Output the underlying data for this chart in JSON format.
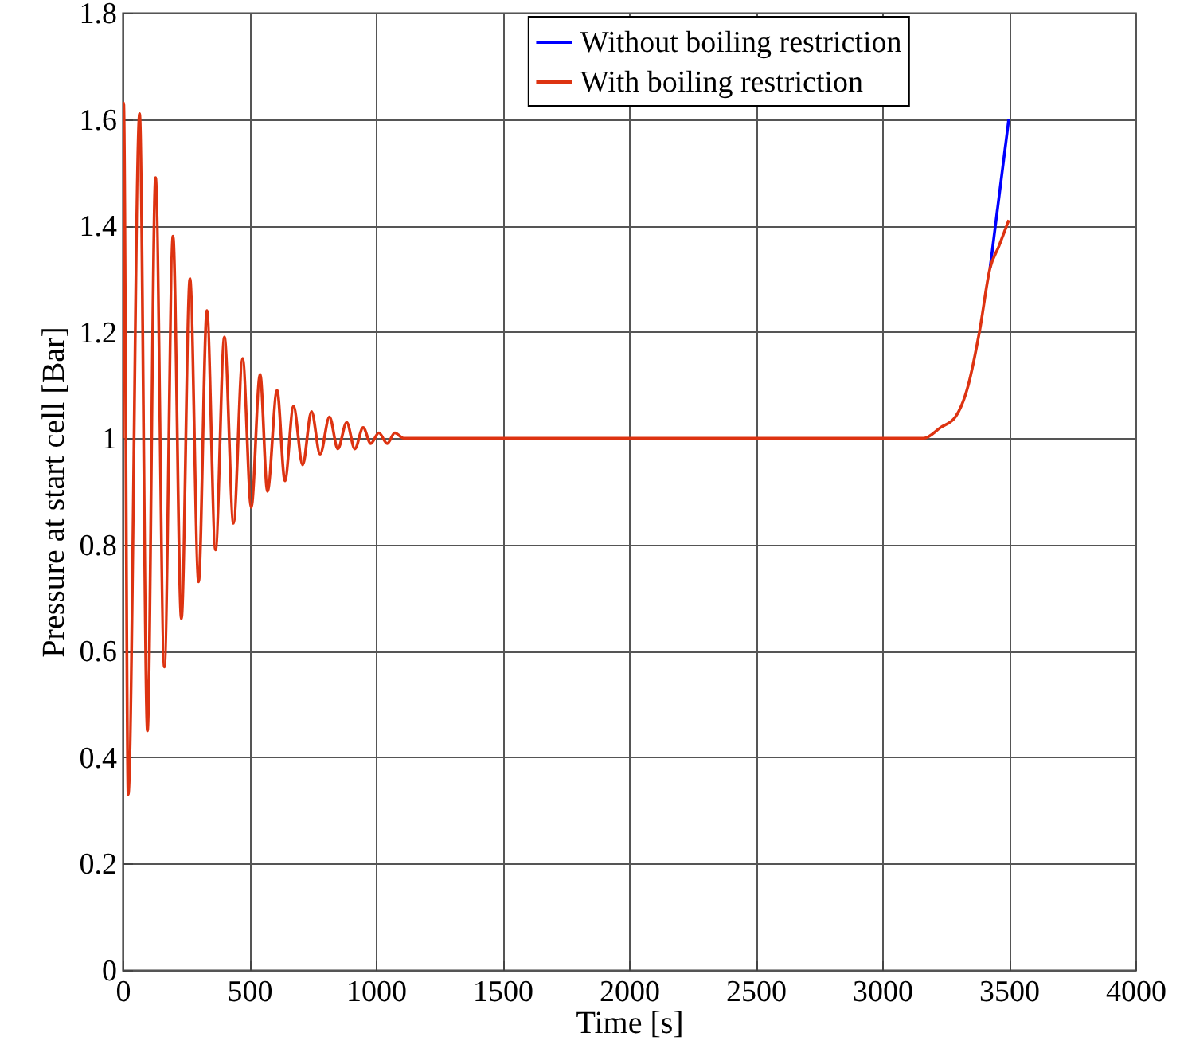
{
  "chart_data": {
    "type": "line",
    "xlabel": "Time [s]",
    "ylabel": "Pressure at start cell [Bar]",
    "xlim": [
      0,
      4000
    ],
    "xticks": [
      0,
      500,
      1000,
      1500,
      2000,
      2500,
      3000,
      3500,
      4000
    ],
    "ylim": [
      0,
      1.8
    ],
    "yticks": [
      0,
      0.2,
      0.4,
      0.6,
      0.8,
      1,
      1.2,
      1.4,
      1.6,
      1.8
    ],
    "grid": true,
    "legend": "top",
    "line_style": "solid",
    "marker": "none",
    "series": [
      {
        "name": "Without boiling restriction",
        "color": "#0000ff",
        "x": [
          3426,
          3500
        ],
        "values": [
          1.32,
          1.6
        ]
      },
      {
        "name": "With boiling restriction",
        "color": "#dd3311",
        "x": [
          0,
          4,
          22,
          67,
          98,
          130,
          165,
          199,
          232,
          266,
          300,
          333,
          367,
          402,
          438,
          474,
          508,
          543,
          572,
          610,
          641,
          675,
          711,
          746,
          780,
          817,
          850,
          885,
          917,
          950,
          980,
          1012,
          1045,
          1075,
          1110,
          1140,
          1175,
          1205,
          1300,
          3130,
          3164,
          3230,
          3289,
          3340,
          3384,
          3426,
          3460,
          3500
        ],
        "values": [
          1.0,
          1.63,
          0.33,
          1.61,
          0.45,
          1.49,
          0.57,
          1.38,
          0.66,
          1.3,
          0.73,
          1.24,
          0.79,
          1.19,
          0.84,
          1.15,
          0.87,
          1.12,
          0.9,
          1.09,
          0.92,
          1.06,
          0.95,
          1.05,
          0.97,
          1.04,
          0.98,
          1.03,
          0.98,
          1.02,
          0.99,
          1.01,
          0.99,
          1.01,
          1.0,
          1.0,
          1.0,
          1.0,
          1.0,
          1.0,
          1.0,
          1.02,
          1.04,
          1.1,
          1.2,
          1.32,
          1.36,
          1.41
        ]
      }
    ]
  }
}
